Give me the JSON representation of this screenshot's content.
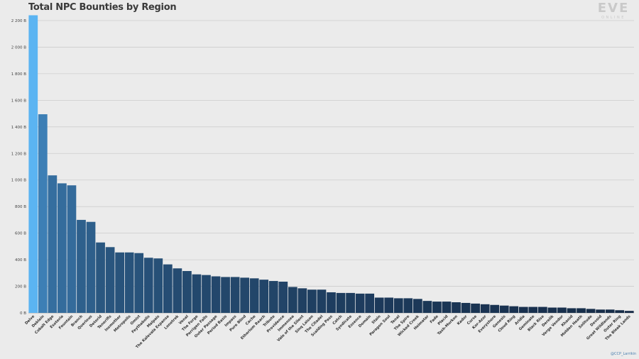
{
  "chart_data": {
    "type": "bar",
    "title": "Total NPC Bounties by Region",
    "xlabel": "",
    "ylabel": "",
    "ylim": [
      0,
      2200
    ],
    "yticks": [
      0,
      200,
      400,
      600,
      800,
      1000,
      1200,
      1400,
      1600,
      1800,
      2000,
      2200
    ],
    "ytick_labels": [
      "0 B",
      "200 B",
      "400 B",
      "600 B",
      "800 B",
      "1 000 B",
      "1 200 B",
      "1 400 B",
      "1 600 B",
      "1 800 B",
      "2 000 B",
      "2 200 B"
    ],
    "grid": true,
    "categories": [
      "Delve",
      "Deklein",
      "Cobalt Edge",
      "Esoteria",
      "Fountain",
      "Branch",
      "Querious",
      "Detorid",
      "Tenerifis",
      "Insmother",
      "Metropolis",
      "Omist",
      "Feythabolis",
      "Malpais",
      "The Kalevala Expanse",
      "Lonetrek",
      "Venal",
      "The Forge",
      "Perrigen Falls",
      "Outer Passage",
      "Period Basis",
      "Impass",
      "Pure Blind",
      "Cache",
      "Etherium Reach",
      "Tribute",
      "Providence",
      "Immensea",
      "Vale of the Silent",
      "Sinq Laison",
      "The Citadel",
      "Scalding Pass",
      "Catch",
      "Syndicate",
      "Essence",
      "Domain",
      "Stain",
      "Paragon Soul",
      "Tenal",
      "The Spire",
      "Wicked Creek",
      "Heimatar",
      "Fade",
      "Placid",
      "Tash-Murkon",
      "Kador",
      "Curse",
      "Kor-Azor",
      "Everyshore",
      "Genesis",
      "Cloud Ring",
      "Aridia",
      "Geminate",
      "Black Rise",
      "Derelik",
      "Verge Vendor",
      "Khanid",
      "Molden Heath",
      "Solitude",
      "Devoid",
      "Great Wildlands",
      "Outer Ring",
      "The Bleak Lands"
    ],
    "series": [
      {
        "values": [
          2240,
          1495,
          1035,
          975,
          960,
          700,
          685,
          530,
          495,
          455,
          455,
          450,
          415,
          410,
          365,
          335,
          315,
          290,
          285,
          275,
          270,
          270,
          265,
          260,
          250,
          240,
          235,
          195,
          185,
          175,
          175,
          155,
          150,
          150,
          145,
          145,
          115,
          115,
          110,
          110,
          105,
          90,
          85,
          85,
          80,
          75,
          70,
          65,
          60,
          55,
          50,
          45,
          45,
          45,
          40,
          40,
          35,
          35,
          30,
          25,
          25,
          20,
          15
        ]
      }
    ],
    "colors": {
      "highlight": "#5bb4f2",
      "high": "#3d7fb5",
      "low": "#12233c"
    }
  },
  "logo": {
    "main": "EVE",
    "sub": "ONLINE"
  },
  "credit": "@CCP_Larrikin"
}
